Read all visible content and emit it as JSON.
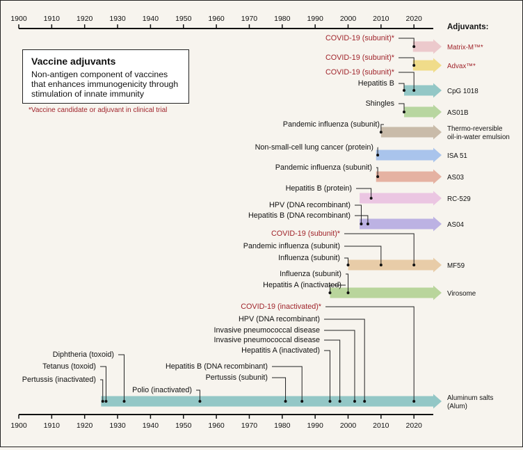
{
  "axis": {
    "ticks": [
      "1900",
      "1910",
      "1920",
      "1930",
      "1940",
      "1950",
      "1960",
      "1970",
      "1980",
      "1990",
      "2000",
      "2010",
      "2020"
    ]
  },
  "adjuvants_header": "Adjuvants:",
  "legend": {
    "title": "Vaccine adjuvants",
    "description": "Non-antigen component of vaccines that enhances immunogenicity through stimulation of innate immunity",
    "note": "*Vaccine candidate or adjuvant in clinical trial"
  },
  "colors": {
    "candidate_text": "#a0242b",
    "text": "#111111"
  },
  "adjuvants": [
    {
      "name": "Matrix-M™*",
      "candidate": true,
      "color": "#ecc9cc",
      "start": 2019.7,
      "events": [
        {
          "label": "COVID-19 (subunit)*",
          "year": 2020,
          "candidate": true
        }
      ]
    },
    {
      "name": "Advax™*",
      "candidate": true,
      "color": "#f0dc8a",
      "start": 2019.7,
      "events": [
        {
          "label": "COVID-19 (subunit)*",
          "year": 2020,
          "candidate": true
        }
      ]
    },
    {
      "name": "CpG 1018",
      "candidate": false,
      "color": "#93c7c6",
      "start": 2017,
      "events": [
        {
          "label": "COVID-19 (subunit)*",
          "year": 2020,
          "candidate": true
        },
        {
          "label": "Hepatitis B",
          "year": 2017,
          "candidate": false
        }
      ]
    },
    {
      "name": "AS01B",
      "candidate": false,
      "color": "#b8d6a0",
      "start": 2017,
      "events": [
        {
          "label": "Shingles",
          "year": 2017,
          "candidate": false
        }
      ]
    },
    {
      "name": "Thermo-reversible oil-in-water emulsion",
      "candidate": false,
      "color": "#c9bba9",
      "start": 2010,
      "events": [
        {
          "label": "Pandemic influenza (subunit)",
          "year": 2010,
          "candidate": false
        }
      ]
    },
    {
      "name": "ISA 51",
      "candidate": false,
      "color": "#a9c4ec",
      "start": 2008.5,
      "events": [
        {
          "label": "Non-small-cell lung cancer (protein)",
          "year": 2009,
          "candidate": false
        }
      ]
    },
    {
      "name": "AS03",
      "candidate": false,
      "color": "#e5b2a2",
      "start": 2008.5,
      "events": [
        {
          "label": "Pandemic influenza (subunit)",
          "year": 2009,
          "candidate": false
        }
      ]
    },
    {
      "name": "RC-529",
      "candidate": false,
      "color": "#ebc6e2",
      "start": 2003.5,
      "events": [
        {
          "label": "Hepatitis B (protein)",
          "year": 2007,
          "candidate": false
        }
      ]
    },
    {
      "name": "AS04",
      "candidate": false,
      "color": "#bcb2e3",
      "start": 2003.5,
      "events": [
        {
          "label": "HPV (DNA recombinant)",
          "year": 2004,
          "candidate": false
        },
        {
          "label": "Hepatitis B (DNA recombinant)",
          "year": 2006,
          "candidate": false
        }
      ]
    },
    {
      "name": "MF59",
      "candidate": false,
      "color": "#e8cca8",
      "start": 2000,
      "events": [
        {
          "label": "COVID-19 (subunit)*",
          "year": 2020,
          "candidate": true
        },
        {
          "label": "Pandemic influenza (subunit)",
          "year": 2010,
          "candidate": false
        },
        {
          "label": "Influenza (subunit)",
          "year": 2000,
          "candidate": false
        }
      ]
    },
    {
      "name": "Virosome",
      "candidate": false,
      "color": "#b9d59c",
      "start": 1994.5,
      "events": [
        {
          "label": "Influenza (subunit)",
          "year": 2000,
          "candidate": false
        },
        {
          "label": "Hepatitis A (inactivated)",
          "year": 1994.5,
          "candidate": false
        }
      ]
    },
    {
      "name": "Aluminum salts (Alum)",
      "candidate": false,
      "color": "#93c7c6",
      "start": 1925,
      "events": [
        {
          "label": "COVID-19 (inactivated)*",
          "year": 2020,
          "candidate": true
        },
        {
          "label": "HPV (DNA recombinant)",
          "year": 2005,
          "candidate": false
        },
        {
          "label": "Invasive pneumococcal disease",
          "year": 2002,
          "candidate": false
        },
        {
          "label": "Invasive pneumococcal disease",
          "year": 1997.5,
          "candidate": false
        },
        {
          "label": "Hepatitis A (inactivated)",
          "year": 1994.5,
          "candidate": false
        },
        {
          "label": "Hepatitis B (DNA recombinant)",
          "year": 1986,
          "candidate": false
        },
        {
          "label": "Pertussis (subunit)",
          "year": 1981,
          "candidate": false
        },
        {
          "label": "Polio (inactivated)",
          "year": 1955,
          "candidate": false
        },
        {
          "label": "Diphtheria (toxoid)",
          "year": 1932,
          "candidate": false
        },
        {
          "label": "Tetanus (toxoid)",
          "year": 1926.5,
          "candidate": false
        },
        {
          "label": "Pertussis (inactivated)",
          "year": 1925.5,
          "candidate": false
        }
      ]
    }
  ]
}
